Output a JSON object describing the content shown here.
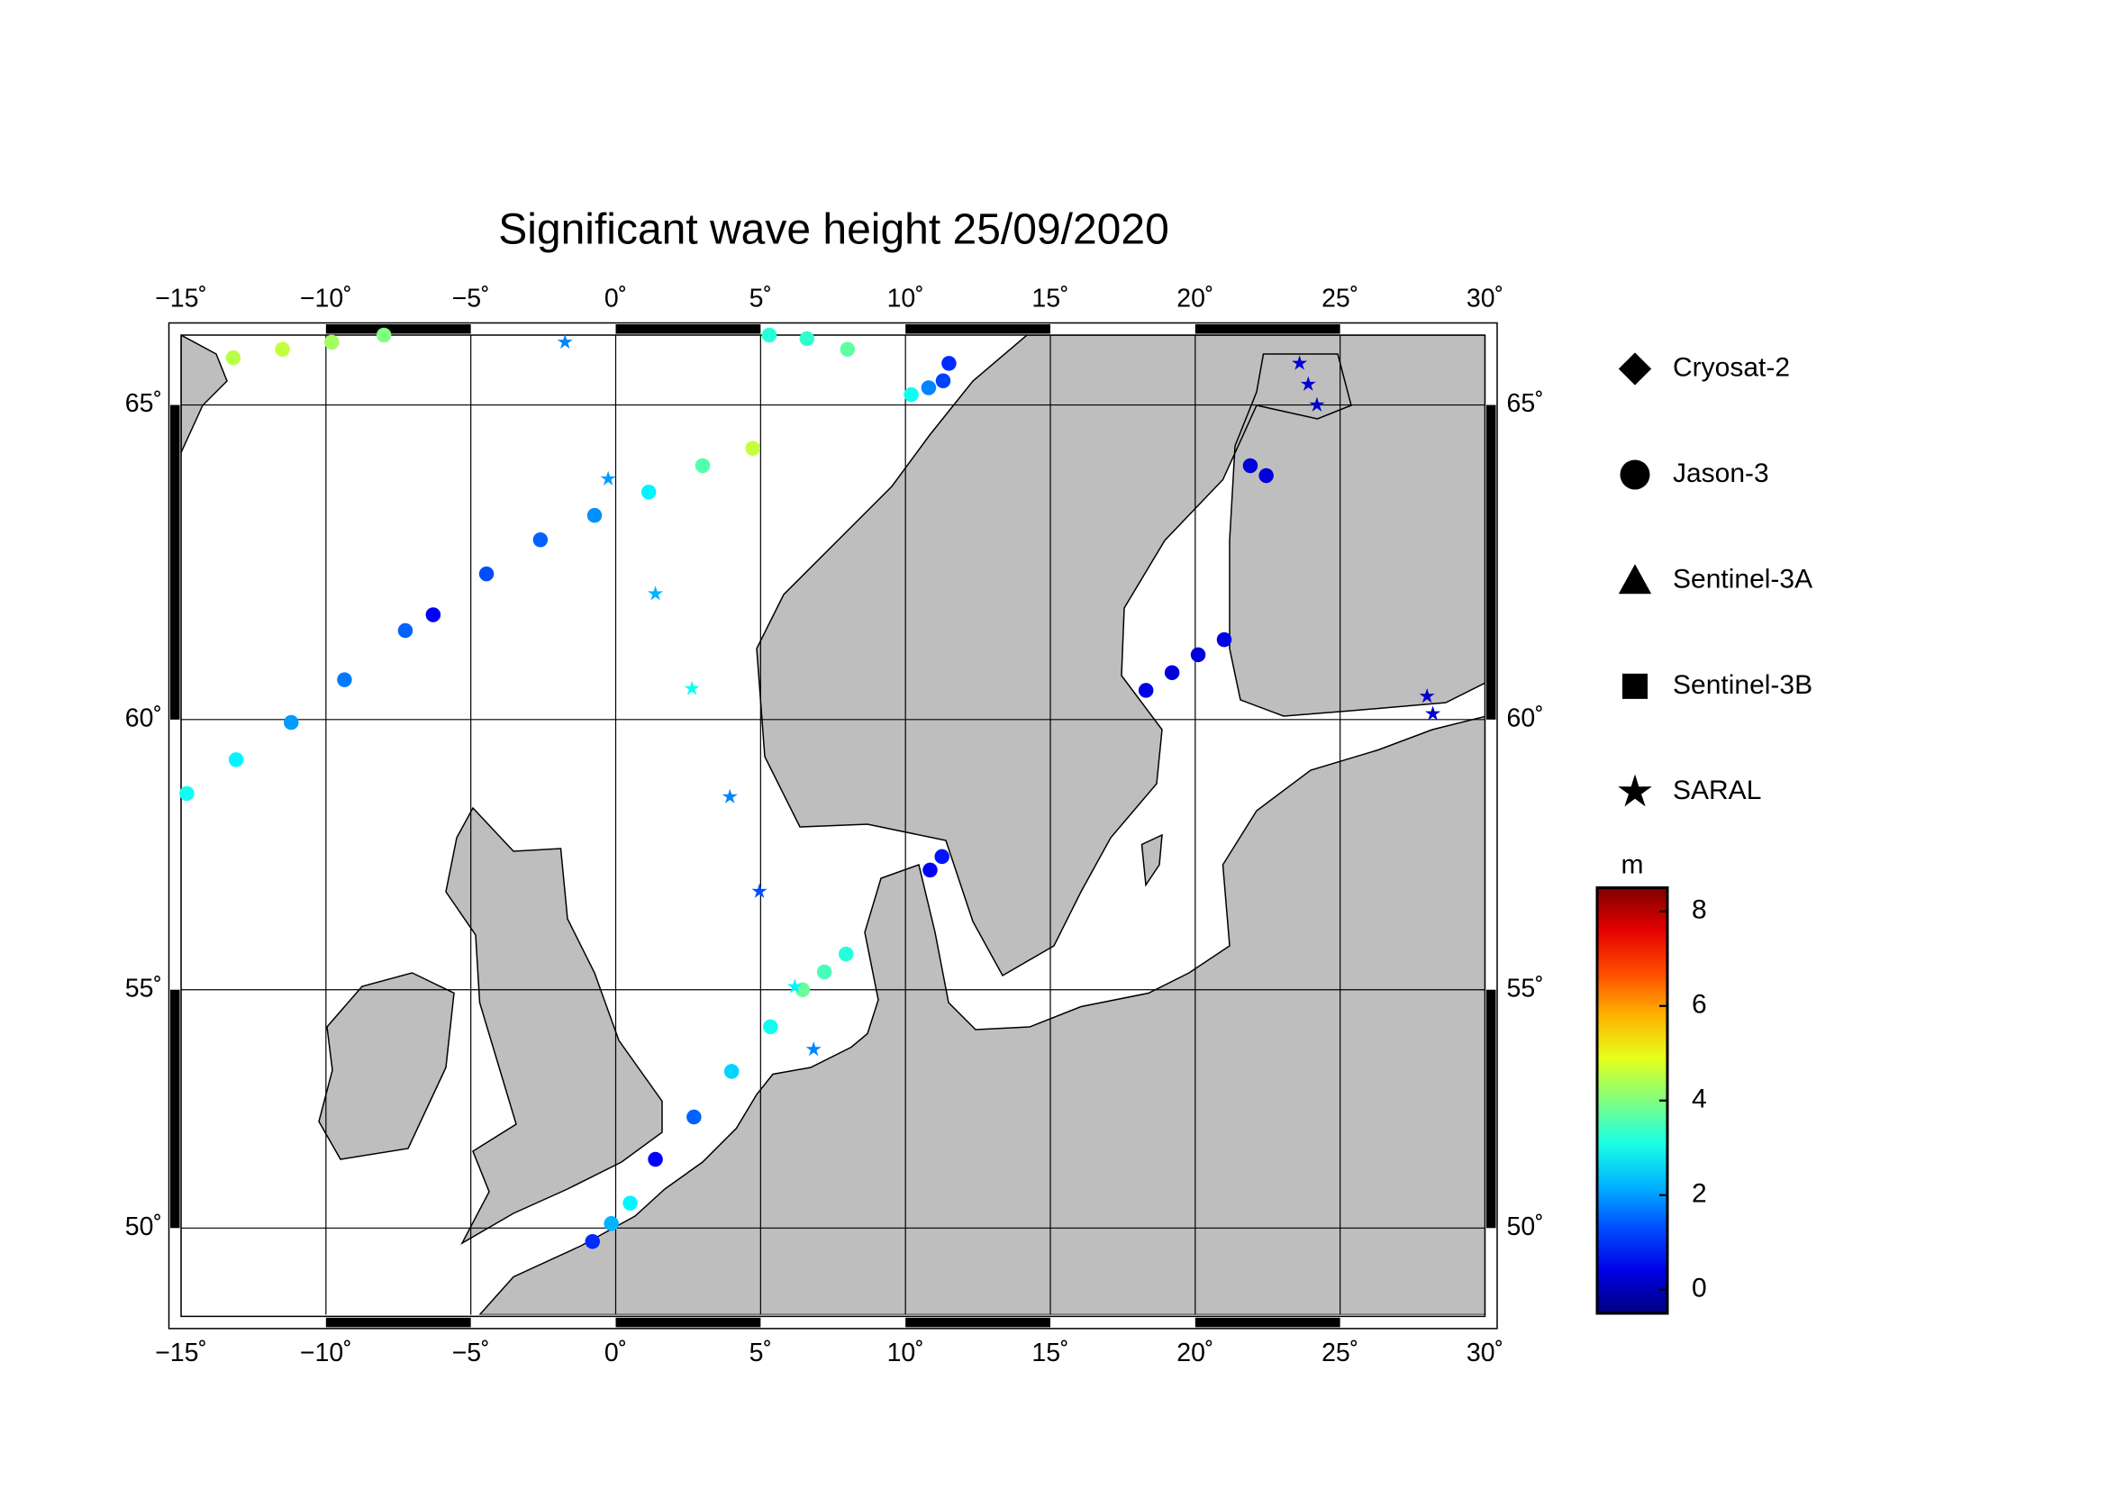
{
  "chart_data": {
    "type": "map",
    "title": "Significant wave height 25/09/2020",
    "projection": "mercator",
    "xlim": [
      -15,
      30
    ],
    "ylim": [
      48,
      66
    ],
    "xticks": [
      {
        "value": -15,
        "label": "−15˚"
      },
      {
        "value": -10,
        "label": "−10˚"
      },
      {
        "value": -5,
        "label": "−5˚"
      },
      {
        "value": 0,
        "label": "0˚"
      },
      {
        "value": 5,
        "label": "5˚"
      },
      {
        "value": 10,
        "label": "10˚"
      },
      {
        "value": 15,
        "label": "15˚"
      },
      {
        "value": 20,
        "label": "20˚"
      },
      {
        "value": 25,
        "label": "25˚"
      },
      {
        "value": 30,
        "label": "30˚"
      }
    ],
    "yticks": [
      {
        "value": 50,
        "label": "50˚"
      },
      {
        "value": 55,
        "label": "55˚"
      },
      {
        "value": 60,
        "label": "60˚"
      },
      {
        "value": 65,
        "label": "65˚"
      }
    ],
    "grid": true,
    "colormap": "jet",
    "clim": [
      -0.5,
      8.5
    ],
    "colorbar": {
      "label": "m",
      "ticks": [
        0,
        2,
        4,
        6,
        8
      ]
    },
    "series": [
      {
        "name": "Cryosat-2",
        "marker": "diamond",
        "tracks": []
      },
      {
        "name": "Jason-3",
        "marker": "circle",
        "tracks": [
          {
            "lon": [
              -14.8,
              -13.1,
              -11.2,
              -9.36,
              -7.26,
              -6.3,
              -4.46,
              -2.6,
              -0.73,
              1.14,
              3.0,
              4.73
            ],
            "lat": [
              58.7,
              59.3,
              59.95,
              60.68,
              61.5,
              61.76,
              62.42,
              62.96,
              63.34,
              63.7,
              64.1,
              64.36
            ],
            "swh": [
              3.0,
              2.8,
              2.0,
              1.7,
              1.5,
              0.6,
              1.3,
              1.5,
              1.9,
              2.8,
              3.6,
              4.6
            ]
          },
          {
            "lon": [
              -13.2,
              -11.5,
              -9.8,
              -8.0
            ],
            "lat": [
              65.68,
              65.8,
              65.9,
              66.0
            ],
            "swh": [
              4.5,
              4.6,
              4.3,
              4.0
            ]
          },
          {
            "lon": [
              5.3,
              6.6,
              8.0
            ],
            "lat": [
              66.0,
              65.95,
              65.8
            ],
            "swh": [
              3.2,
              3.3,
              3.7
            ]
          },
          {
            "lon": [
              10.2,
              10.8,
              11.3,
              11.5
            ],
            "lat": [
              65.15,
              65.25,
              65.35,
              65.6
            ],
            "swh": [
              3.0,
              1.8,
              1.2,
              1.0
            ]
          },
          {
            "lon": [
              1.37,
              2.7,
              4.0,
              5.34
            ],
            "lat": [
              51.5,
              52.4,
              53.35,
              54.26
            ],
            "swh": [
              0.6,
              1.5,
              2.5,
              3.0
            ]
          },
          {
            "lon": [
              6.45,
              7.2,
              7.95
            ],
            "lat": [
              55.0,
              55.35,
              55.7
            ],
            "swh": [
              3.8,
              3.5,
              3.2
            ]
          },
          {
            "lon": [
              -0.8,
              -0.15,
              0.5
            ],
            "lat": [
              49.7,
              50.1,
              50.55
            ],
            "swh": [
              1.0,
              2.2,
              2.8
            ]
          },
          {
            "lon": [
              10.85,
              11.26
            ],
            "lat": [
              57.3,
              57.55
            ],
            "swh": [
              0.6,
              0.8
            ]
          },
          {
            "lon": [
              18.3,
              19.2,
              20.1,
              21.0
            ],
            "lat": [
              60.5,
              60.8,
              61.1,
              61.35
            ],
            "swh": [
              0.4,
              0.3,
              0.3,
              0.4
            ]
          },
          {
            "lon": [
              21.9,
              22.45
            ],
            "lat": [
              64.1,
              63.95
            ],
            "swh": [
              0.3,
              0.3
            ]
          }
        ]
      },
      {
        "name": "Sentinel-3A",
        "marker": "triangle",
        "tracks": []
      },
      {
        "name": "Sentinel-3B",
        "marker": "square",
        "tracks": []
      },
      {
        "name": "SARAL",
        "marker": "star",
        "tracks": [
          {
            "lon": [
              -1.75,
              -0.26,
              1.37,
              2.63,
              3.94,
              4.96,
              6.18,
              6.83
            ],
            "lat": [
              65.9,
              63.9,
              62.1,
              60.53,
              58.64,
              56.9,
              55.06,
              53.8
            ],
            "swh": [
              1.8,
              2.0,
              2.2,
              3.0,
              1.8,
              1.3,
              2.8,
              1.8
            ]
          },
          {
            "lon": [
              23.6,
              23.9,
              24.2
            ],
            "lat": [
              65.6,
              65.3,
              65.0
            ],
            "swh": [
              0.2,
              0.2,
              0.2
            ]
          },
          {
            "lon": [
              28.0,
              28.2
            ],
            "lat": [
              60.4,
              60.1
            ],
            "swh": [
              0.2,
              0.2
            ]
          }
        ]
      }
    ]
  }
}
